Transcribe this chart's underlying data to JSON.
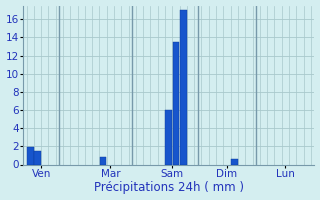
{
  "bar_positions": [
    0,
    1,
    10,
    19,
    20,
    21,
    28
  ],
  "bar_values": [
    1.9,
    1.5,
    0.85,
    6.0,
    13.5,
    17.0,
    0.65
  ],
  "bar_color": "#1755cc",
  "bar_edge_color": "#0a3a99",
  "background_color": "#d4eef0",
  "grid_color": "#a8c8cc",
  "vline_color": "#7799aa",
  "axis_label_color": "#2233bb",
  "xlabel": "Précipitations 24h ( mm )",
  "ylim": [
    0,
    17.5
  ],
  "yticks": [
    0,
    2,
    4,
    6,
    8,
    10,
    12,
    14,
    16
  ],
  "xlim": [
    -1,
    39
  ],
  "xtick_positions": [
    1.5,
    11,
    19.5,
    27,
    35
  ],
  "xtick_labels": [
    "Ven",
    "Mar",
    "Sam",
    "Dim",
    "Lun"
  ],
  "vlines": [
    4,
    14,
    23,
    31
  ],
  "xlabel_fontsize": 8.5,
  "tick_fontsize": 7.5
}
